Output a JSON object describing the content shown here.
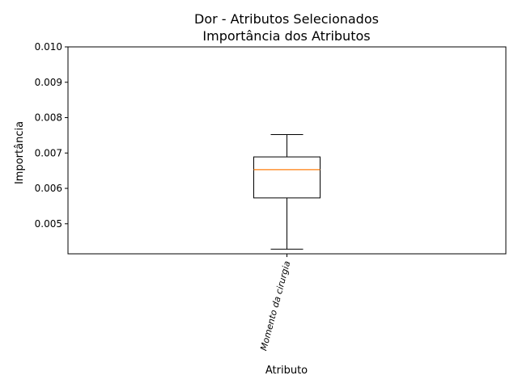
{
  "chart_data": {
    "type": "box",
    "title": "Dor - Atributos Selecionados",
    "subtitle": "Importância dos Atributos",
    "xlabel": "Atributo",
    "ylabel": "Importância",
    "ylim": [
      0.00415,
      0.01
    ],
    "yticks": [
      "0.005",
      "0.006",
      "0.007",
      "0.008",
      "0.009",
      "0.010"
    ],
    "ytick_values": [
      0.005,
      0.006,
      0.007,
      0.008,
      0.009,
      0.01
    ],
    "categories": [
      "Momento da cirurgia"
    ],
    "boxes": [
      {
        "category": "Momento da cirurgia",
        "whisker_low": 0.00428,
        "q1": 0.00573,
        "median": 0.00653,
        "q3": 0.00689,
        "whisker_high": 0.00752
      }
    ],
    "colors": {
      "box": "#000000",
      "median": "#ff7f0e"
    },
    "grid": false
  }
}
